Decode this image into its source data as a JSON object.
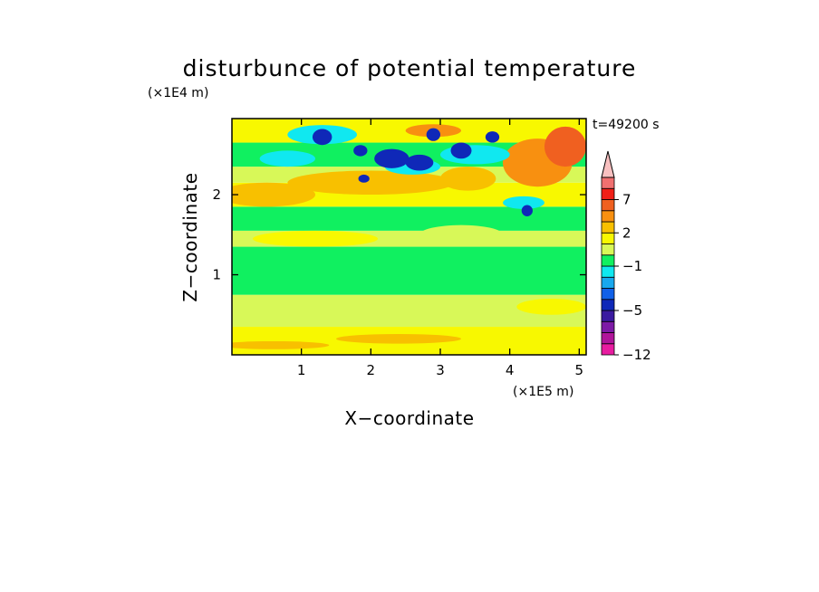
{
  "chart_data": {
    "type": "heatmap",
    "title": "disturbunce of potential temperature",
    "xlabel": "X−coordinate",
    "ylabel": "Z−coordinate",
    "x_unit": "(×1E5 m)",
    "y_unit": "(×1E4 m)",
    "time_label": "t=49200 s",
    "xlim": [
      0,
      5.1
    ],
    "ylim": [
      0,
      2.95
    ],
    "xticks": [
      1,
      2,
      3,
      4,
      5
    ],
    "yticks": [
      1,
      2
    ],
    "colorbar": {
      "levels": [
        -12,
        -10,
        -8,
        -6,
        -5,
        -4,
        -3,
        -2,
        -1,
        0,
        1,
        2,
        3,
        5,
        7,
        9,
        11
      ],
      "tick_labels": [
        "-12",
        "-5",
        "-1",
        "2",
        "7"
      ],
      "tick_values": [
        -12,
        -5,
        -1,
        2,
        7
      ],
      "colors": [
        "#e81ca0",
        "#b0159a",
        "#7d1aa6",
        "#3a1aa0",
        "#0f28b8",
        "#1060e8",
        "#18a8ee",
        "#10e8f0",
        "#10f060",
        "#d8f858",
        "#f8f800",
        "#f8c000",
        "#f89010",
        "#f06020",
        "#f02018",
        "#f07070",
        "#f8c0c0"
      ],
      "extend": "max"
    }
  }
}
